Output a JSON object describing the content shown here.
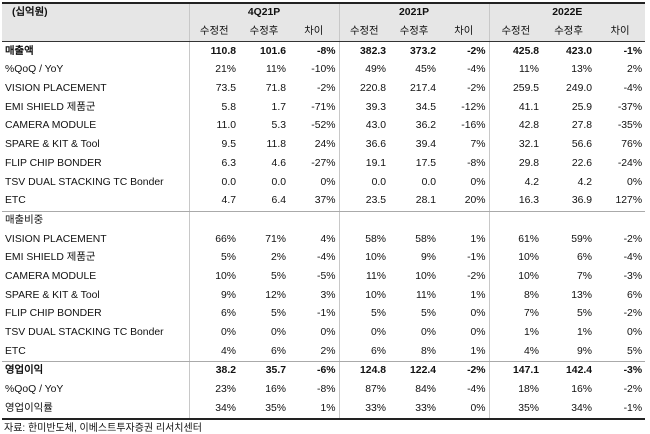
{
  "header": {
    "unit": "(십억원)",
    "periods": [
      "4Q21P",
      "2021P",
      "2022E"
    ],
    "subheaders": [
      "수정전",
      "수정후",
      "차이",
      "수정전",
      "수정후",
      "차이",
      "수정전",
      "수정후",
      "차이"
    ]
  },
  "rows": [
    {
      "label": "매출액",
      "bold": true,
      "values": [
        "110.8",
        "101.6",
        "-8%",
        "382.3",
        "373.2",
        "-2%",
        "425.8",
        "423.0",
        "-1%"
      ]
    },
    {
      "label": "%QoQ / YoY",
      "values": [
        "21%",
        "11%",
        "-10%",
        "49%",
        "45%",
        "-4%",
        "11%",
        "13%",
        "2%"
      ]
    },
    {
      "label": "VISION PLACEMENT",
      "values": [
        "73.5",
        "71.8",
        "-2%",
        "220.8",
        "217.4",
        "-2%",
        "259.5",
        "249.0",
        "-4%"
      ]
    },
    {
      "label": "EMI SHIELD 제품군",
      "values": [
        "5.8",
        "1.7",
        "-71%",
        "39.3",
        "34.5",
        "-12%",
        "41.1",
        "25.9",
        "-37%"
      ]
    },
    {
      "label": "CAMERA MODULE",
      "values": [
        "11.0",
        "5.3",
        "-52%",
        "43.0",
        "36.2",
        "-16%",
        "42.8",
        "27.8",
        "-35%"
      ]
    },
    {
      "label": "SPARE & KIT & Tool",
      "values": [
        "9.5",
        "11.8",
        "24%",
        "36.6",
        "39.4",
        "7%",
        "32.1",
        "56.6",
        "76%"
      ]
    },
    {
      "label": "FLIP CHIP BONDER",
      "values": [
        "6.3",
        "4.6",
        "-27%",
        "19.1",
        "17.5",
        "-8%",
        "29.8",
        "22.6",
        "-24%"
      ]
    },
    {
      "label": "TSV DUAL STACKING TC Bonder",
      "values": [
        "0.0",
        "0.0",
        "0%",
        "0.0",
        "0.0",
        "0%",
        "4.2",
        "4.2",
        "0%"
      ]
    },
    {
      "label": "ETC",
      "values": [
        "4.7",
        "6.4",
        "37%",
        "23.5",
        "28.1",
        "20%",
        "16.3",
        "36.9",
        "127%"
      ]
    },
    {
      "label": "매출비중",
      "values": [
        "",
        "",
        "",
        "",
        "",
        "",
        "",
        "",
        ""
      ]
    },
    {
      "label": "VISION PLACEMENT",
      "values": [
        "66%",
        "71%",
        "4%",
        "58%",
        "58%",
        "1%",
        "61%",
        "59%",
        "-2%"
      ]
    },
    {
      "label": "EMI SHIELD 제품군",
      "values": [
        "5%",
        "2%",
        "-4%",
        "10%",
        "9%",
        "-1%",
        "10%",
        "6%",
        "-4%"
      ]
    },
    {
      "label": "CAMERA MODULE",
      "values": [
        "10%",
        "5%",
        "-5%",
        "11%",
        "10%",
        "-2%",
        "10%",
        "7%",
        "-3%"
      ]
    },
    {
      "label": "SPARE & KIT & Tool",
      "values": [
        "9%",
        "12%",
        "3%",
        "10%",
        "11%",
        "1%",
        "8%",
        "13%",
        "6%"
      ]
    },
    {
      "label": "FLIP CHIP BONDER",
      "values": [
        "6%",
        "5%",
        "-1%",
        "5%",
        "5%",
        "0%",
        "7%",
        "5%",
        "-2%"
      ]
    },
    {
      "label": "TSV DUAL STACKING TC Bonder",
      "values": [
        "0%",
        "0%",
        "0%",
        "0%",
        "0%",
        "0%",
        "1%",
        "1%",
        "0%"
      ]
    },
    {
      "label": "ETC",
      "values": [
        "4%",
        "6%",
        "2%",
        "6%",
        "8%",
        "1%",
        "4%",
        "9%",
        "5%"
      ]
    },
    {
      "label": "영업이익",
      "bold": true,
      "values": [
        "38.2",
        "35.7",
        "-6%",
        "124.8",
        "122.4",
        "-2%",
        "147.1",
        "142.4",
        "-3%"
      ]
    },
    {
      "label": "%QoQ / YoY",
      "values": [
        "23%",
        "16%",
        "-8%",
        "87%",
        "84%",
        "-4%",
        "18%",
        "16%",
        "-2%"
      ]
    },
    {
      "label": "영업이익률",
      "values": [
        "34%",
        "35%",
        "1%",
        "33%",
        "33%",
        "0%",
        "35%",
        "34%",
        "-1%"
      ]
    }
  ],
  "source": "자료: 한미반도체, 이베스트투자증권 리서치센터"
}
